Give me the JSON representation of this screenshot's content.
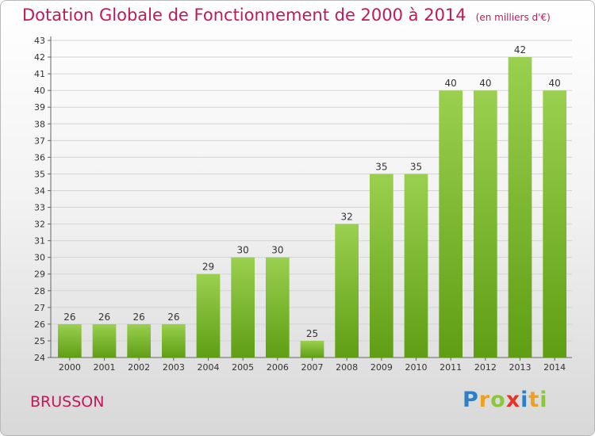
{
  "title": "Dotation Globale de Fonctionnement de 2000 à 2014",
  "subtitle": "(en milliers d'€)",
  "place": "BRUSSON",
  "logo": {
    "text": "Proxiti",
    "letters": [
      {
        "ch": "P",
        "color": "#2f7fc8"
      },
      {
        "ch": "r",
        "color": "#f0a01e"
      },
      {
        "ch": "o",
        "color": "#8cc63f"
      },
      {
        "ch": "x",
        "color": "#e5352b"
      },
      {
        "ch": "i",
        "color": "#2f7fc8"
      },
      {
        "ch": "t",
        "color": "#f0a01e"
      },
      {
        "ch": "i",
        "color": "#8cc63f"
      }
    ]
  },
  "colors": {
    "bar_top": "#9ad04f",
    "bar_bottom": "#5f9e14",
    "title": "#c2185b"
  },
  "chart_data": {
    "type": "bar",
    "title": "Dotation Globale de Fonctionnement de 2000 à 2014",
    "subtitle": "(en milliers d'€)",
    "categories": [
      "2000",
      "2001",
      "2002",
      "2003",
      "2004",
      "2005",
      "2006",
      "2007",
      "2008",
      "2009",
      "2010",
      "2011",
      "2012",
      "2013",
      "2014"
    ],
    "values": [
      26,
      26,
      26,
      26,
      29,
      30,
      30,
      25,
      32,
      35,
      35,
      40,
      40,
      42,
      40
    ],
    "ylim": [
      24,
      43
    ],
    "yticks": [
      24,
      25,
      26,
      27,
      28,
      29,
      30,
      31,
      32,
      33,
      34,
      35,
      36,
      37,
      38,
      39,
      40,
      41,
      42,
      43
    ],
    "grid": true,
    "xlabel": "",
    "ylabel": ""
  }
}
